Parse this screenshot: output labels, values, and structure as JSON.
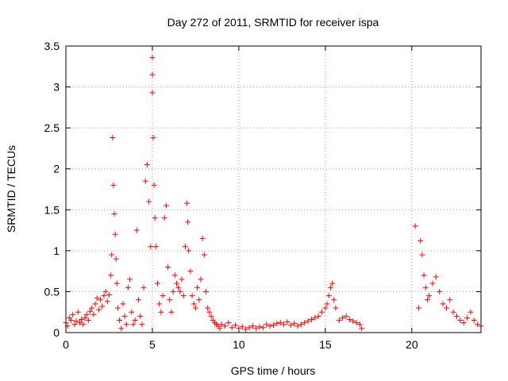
{
  "chart_data": {
    "type": "scatter",
    "title": "Day 272 of 2011, SRMTID for receiver ispa",
    "xlabel": "GPS time / hours",
    "ylabel": "SRMTID / TECUs",
    "xlim": [
      0,
      24
    ],
    "ylim": [
      0,
      3.5
    ],
    "xticks": [
      0,
      5,
      10,
      15,
      20
    ],
    "xtick_labels": [
      "0",
      "5",
      "10",
      "15",
      "20"
    ],
    "yticks": [
      0,
      0.5,
      1,
      1.5,
      2,
      2.5,
      3,
      3.5
    ],
    "ytick_labels": [
      "0",
      "0.5",
      "1",
      "1.5",
      "2",
      "2.5",
      "3",
      "3.5"
    ],
    "grid": true,
    "marker": "+",
    "color": "#ff0000",
    "series": [
      {
        "name": "SRMTID",
        "x": [
          0.0,
          0.1,
          0.2,
          0.3,
          0.4,
          0.5,
          0.6,
          0.7,
          0.8,
          0.9,
          1.0,
          1.1,
          1.2,
          1.3,
          1.4,
          1.5,
          1.6,
          1.7,
          1.8,
          1.9,
          2.0,
          2.1,
          2.2,
          2.3,
          2.4,
          2.5,
          2.6,
          2.65,
          2.7,
          2.75,
          2.8,
          2.85,
          2.9,
          2.95,
          3.0,
          3.1,
          3.2,
          3.3,
          3.4,
          3.5,
          3.6,
          3.7,
          3.8,
          3.9,
          4.0,
          4.1,
          4.2,
          4.3,
          4.4,
          4.5,
          4.6,
          4.7,
          4.8,
          4.9,
          5.0,
          5.0,
          5.0,
          5.05,
          5.1,
          5.15,
          5.2,
          5.3,
          5.4,
          5.5,
          5.6,
          5.7,
          5.8,
          5.9,
          6.0,
          6.1,
          6.2,
          6.3,
          6.4,
          6.5,
          6.6,
          6.7,
          6.8,
          6.9,
          7.0,
          7.05,
          7.1,
          7.2,
          7.3,
          7.4,
          7.5,
          7.6,
          7.7,
          7.8,
          7.9,
          8.0,
          8.1,
          8.2,
          8.3,
          8.4,
          8.5,
          8.6,
          8.7,
          8.8,
          8.9,
          9.0,
          9.2,
          9.4,
          9.6,
          9.8,
          10.0,
          10.2,
          10.4,
          10.6,
          10.8,
          11.0,
          11.2,
          11.4,
          11.6,
          11.8,
          12.0,
          12.2,
          12.4,
          12.6,
          12.8,
          13.0,
          13.2,
          13.4,
          13.6,
          13.8,
          14.0,
          14.2,
          14.4,
          14.6,
          14.8,
          15.0,
          15.1,
          15.2,
          15.3,
          15.4,
          15.5,
          15.6,
          15.8,
          16.0,
          16.2,
          16.4,
          16.6,
          16.8,
          17.0,
          17.1,
          20.2,
          20.4,
          20.5,
          20.6,
          20.7,
          20.8,
          20.9,
          21.0,
          21.2,
          21.4,
          21.6,
          21.8,
          22.0,
          22.2,
          22.4,
          22.6,
          22.8,
          23.0,
          23.2,
          23.4,
          23.6,
          23.8,
          24.0
        ],
        "y": [
          0.12,
          0.08,
          0.18,
          0.15,
          0.22,
          0.1,
          0.14,
          0.25,
          0.12,
          0.16,
          0.1,
          0.18,
          0.22,
          0.15,
          0.26,
          0.3,
          0.22,
          0.35,
          0.42,
          0.28,
          0.4,
          0.32,
          0.45,
          0.5,
          0.38,
          0.46,
          0.7,
          0.95,
          2.38,
          1.8,
          1.45,
          1.2,
          0.9,
          0.6,
          0.3,
          0.15,
          0.05,
          0.35,
          0.2,
          0.1,
          0.55,
          0.65,
          0.25,
          0.1,
          0.15,
          1.25,
          0.4,
          0.2,
          0.1,
          0.55,
          1.85,
          2.05,
          1.6,
          1.05,
          3.36,
          3.15,
          2.93,
          2.38,
          1.8,
          1.4,
          1.05,
          0.6,
          0.35,
          0.25,
          0.45,
          1.4,
          1.55,
          0.8,
          0.4,
          0.25,
          0.5,
          0.7,
          0.6,
          0.55,
          0.5,
          0.65,
          0.45,
          1.05,
          1.58,
          1.35,
          1.0,
          0.75,
          0.45,
          0.35,
          0.3,
          0.55,
          0.4,
          0.65,
          1.15,
          0.95,
          0.5,
          0.3,
          0.25,
          0.2,
          0.15,
          0.12,
          0.1,
          0.08,
          0.05,
          0.1,
          0.08,
          0.12,
          0.06,
          0.09,
          0.05,
          0.07,
          0.04,
          0.06,
          0.08,
          0.05,
          0.07,
          0.06,
          0.1,
          0.08,
          0.09,
          0.11,
          0.12,
          0.1,
          0.13,
          0.09,
          0.11,
          0.08,
          0.1,
          0.12,
          0.14,
          0.16,
          0.18,
          0.2,
          0.25,
          0.3,
          0.35,
          0.45,
          0.55,
          0.6,
          0.4,
          0.3,
          0.15,
          0.18,
          0.2,
          0.16,
          0.14,
          0.12,
          0.1,
          0.05,
          1.3,
          0.3,
          1.12,
          0.95,
          0.7,
          0.55,
          0.4,
          0.45,
          0.6,
          0.68,
          0.5,
          0.35,
          0.3,
          0.4,
          0.25,
          0.2,
          0.15,
          0.12,
          0.18,
          0.25,
          0.15,
          0.1,
          0.08
        ]
      }
    ]
  }
}
